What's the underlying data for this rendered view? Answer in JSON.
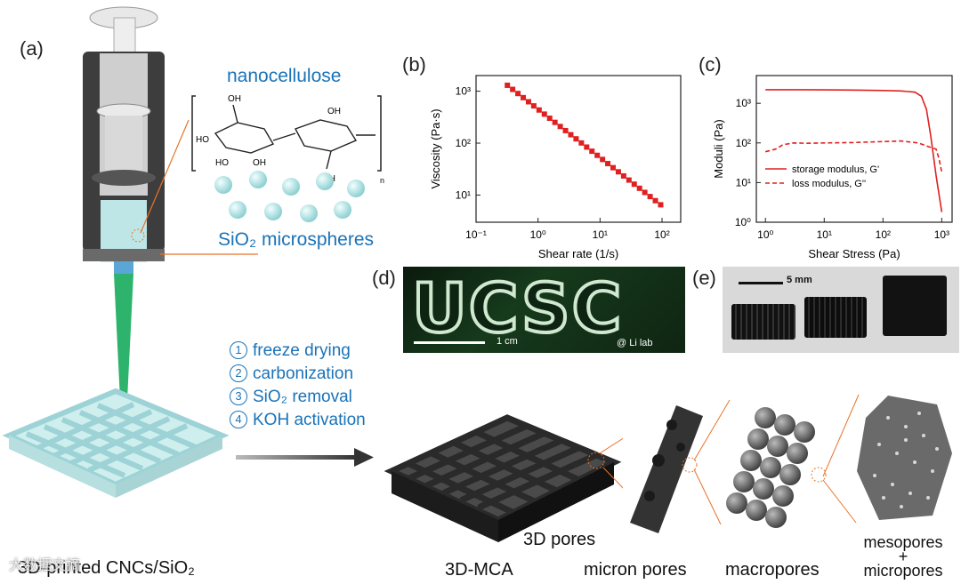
{
  "panels": {
    "a": "(a)",
    "b": "(b)",
    "c": "(c)",
    "d": "(d)",
    "e": "(e)"
  },
  "panel_a": {
    "nanocellulose_label": "nanocellulose",
    "sio2_label": "SiO₂ microspheres",
    "subscript_n": "n",
    "printed_caption": "3D-printed CNCs/SiO₂",
    "oh_labels": [
      "OH",
      "HO",
      "HO",
      "OH",
      "OH",
      "OH"
    ]
  },
  "process_steps": [
    {
      "num": "1",
      "label": "freeze drying"
    },
    {
      "num": "2",
      "label": "carbonization"
    },
    {
      "num": "3",
      "label": "SiO₂ removal"
    },
    {
      "num": "4",
      "label": "KOH activation"
    }
  ],
  "panel_d": {
    "word": "UCSC",
    "scale_label": "1 cm",
    "credit": "@ Li lab"
  },
  "panel_e": {
    "scale_label": "5 mm"
  },
  "bottom_labels": {
    "mca": "3D-MCA",
    "pores_3d": "3D pores",
    "micron": "micron pores",
    "macro": "macropores",
    "meso_line1": "mesopores",
    "meso_plus": "+",
    "meso_line2": "micropores"
  },
  "watermark": "大数据文摘",
  "colors": {
    "series_red": "#e02020",
    "label_blue": "#1a73b8",
    "leader_orange": "#e8742a"
  },
  "chart_data": [
    {
      "type": "scatter",
      "xlabel": "Shear rate (1/s)",
      "ylabel": "Viscosity (Pa·s)",
      "xscale": "log",
      "yscale": "log",
      "xlim": [
        0.1,
        200
      ],
      "ylim": [
        3,
        2000
      ],
      "xticks": [
        "10⁻¹",
        "10⁰",
        "10¹",
        "10²"
      ],
      "yticks": [
        "10¹",
        "10²",
        "10³"
      ],
      "x_start": 0.32,
      "x_end": 95,
      "n_points": 30,
      "y_start": 1300,
      "y_end": 6.5
    },
    {
      "type": "line",
      "xlabel": "Shear Stress (Pa)",
      "ylabel": "Moduli (Pa)",
      "xscale": "log",
      "yscale": "log",
      "xlim": [
        0.7,
        1500
      ],
      "ylim": [
        1,
        5000
      ],
      "xticks": [
        "10⁰",
        "10¹",
        "10²",
        "10³"
      ],
      "yticks": [
        "10⁰",
        "10¹",
        "10²",
        "10³"
      ],
      "legend_placement": "center-left",
      "series": [
        {
          "name": "storage modulus, G'",
          "style": "solid",
          "points": [
            [
              1,
              2200
            ],
            [
              3,
              2200
            ],
            [
              10,
              2180
            ],
            [
              30,
              2150
            ],
            [
              100,
              2100
            ],
            [
              200,
              2050
            ],
            [
              350,
              1900
            ],
            [
              450,
              1500
            ],
            [
              550,
              700
            ],
            [
              650,
              150
            ],
            [
              800,
              15
            ],
            [
              1000,
              1.8
            ]
          ]
        },
        {
          "name": "loss modulus, G''",
          "style": "dashed",
          "points": [
            [
              1,
              60
            ],
            [
              1.5,
              70
            ],
            [
              2,
              90
            ],
            [
              3,
              100
            ],
            [
              5,
              98
            ],
            [
              10,
              100
            ],
            [
              30,
              102
            ],
            [
              100,
              108
            ],
            [
              200,
              112
            ],
            [
              400,
              100
            ],
            [
              600,
              80
            ],
            [
              800,
              70
            ],
            [
              900,
              40
            ],
            [
              1000,
              18
            ]
          ]
        }
      ]
    }
  ]
}
